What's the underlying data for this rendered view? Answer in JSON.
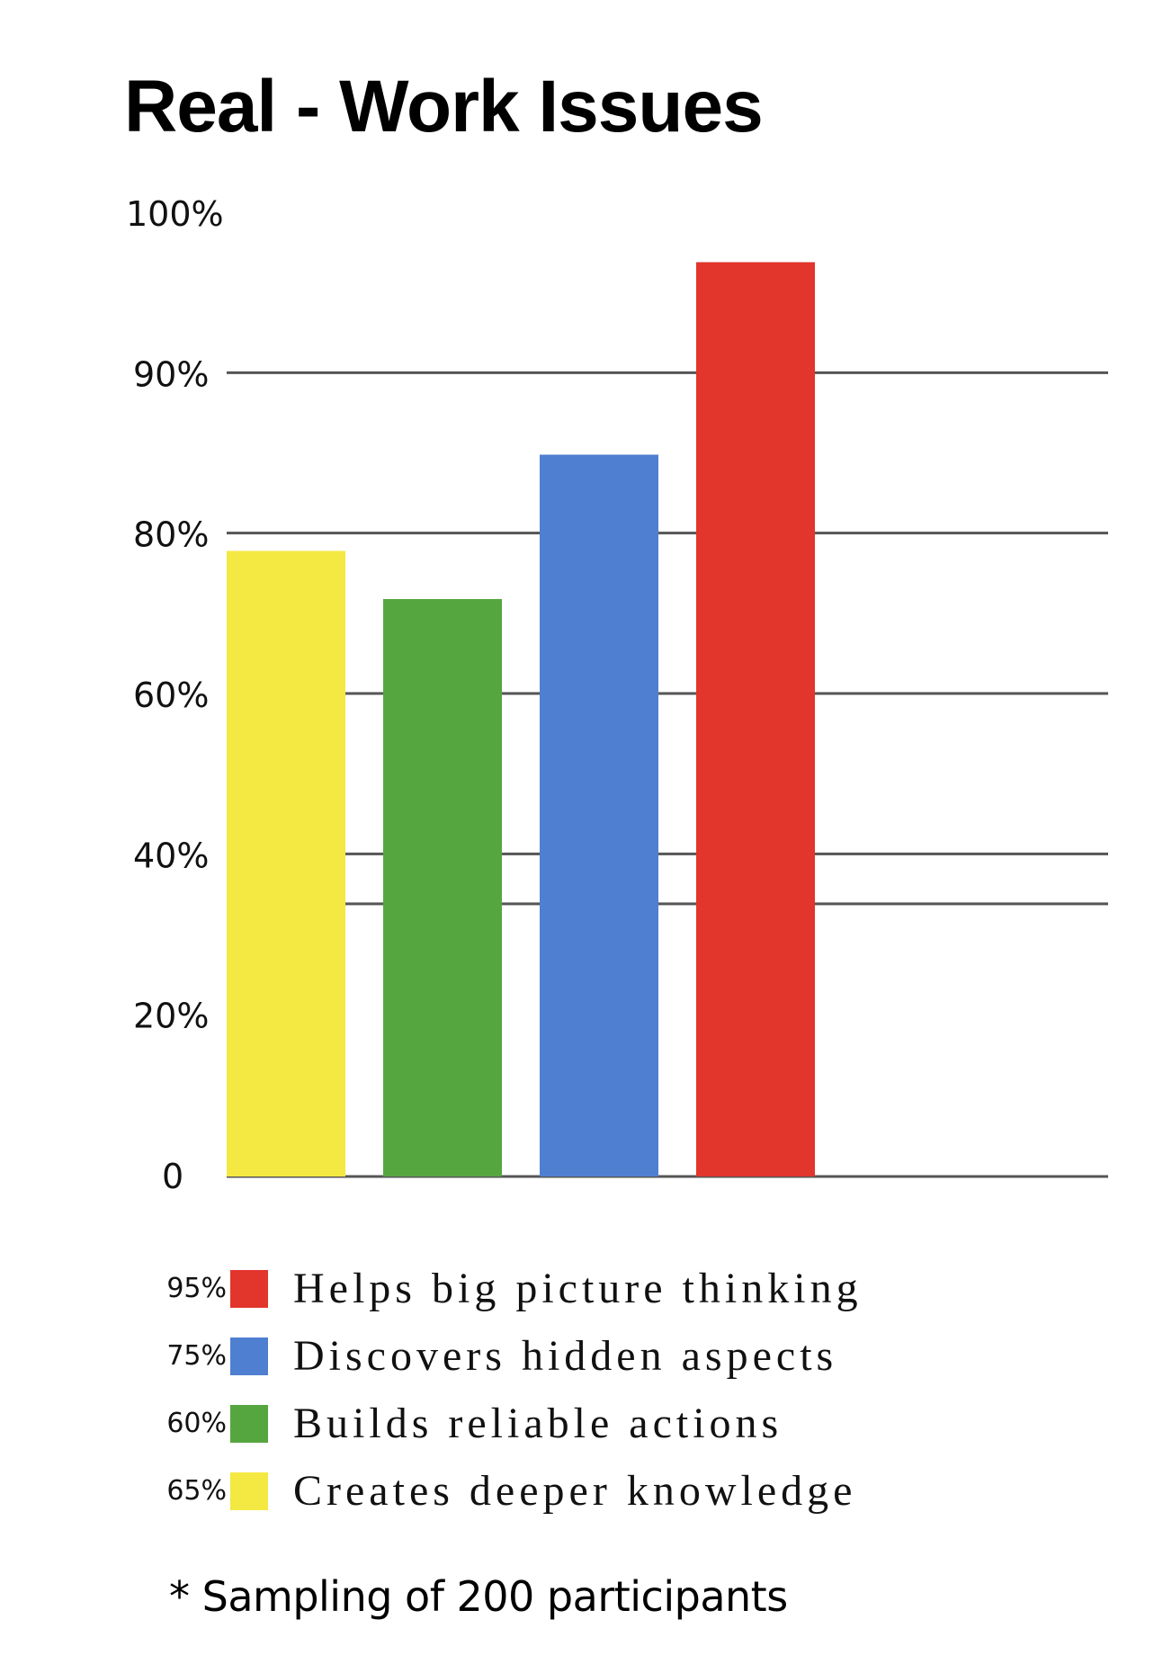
{
  "chart_data": {
    "type": "bar",
    "title": "Real - Work Issues",
    "categories": [
      "Creates deeper knowledge",
      "Builds reliable actions",
      "Discovers hidden aspects",
      "Helps big picture thinking"
    ],
    "values": [
      65,
      60,
      75,
      95
    ],
    "colors": [
      "#f4e842",
      "#56a640",
      "#4f7fd0",
      "#e2352c"
    ],
    "ylim": [
      0,
      100
    ],
    "yticks": [
      {
        "label": "100%",
        "grid": false
      },
      {
        "label": "90%",
        "grid": true
      },
      {
        "label": "80%",
        "grid": true
      },
      {
        "label": "60%",
        "grid": true
      },
      {
        "label": "40%",
        "grid": true
      },
      {
        "label": "20%",
        "grid": false
      },
      {
        "label": "0",
        "grid": true
      }
    ],
    "grid": true,
    "legend_position": "bottom",
    "legend": [
      {
        "pct": "95%",
        "label": "Helps big picture thinking",
        "color": "#e2352c"
      },
      {
        "pct": "75%",
        "label": "Discovers hidden aspects",
        "color": "#4f7fd0"
      },
      {
        "pct": "60%",
        "label": "Builds reliable actions",
        "color": "#56a640"
      },
      {
        "pct": "65%",
        "label": "Creates deeper knowledge",
        "color": "#f4e842"
      }
    ],
    "footnote": "* Sampling of 200 participants"
  }
}
